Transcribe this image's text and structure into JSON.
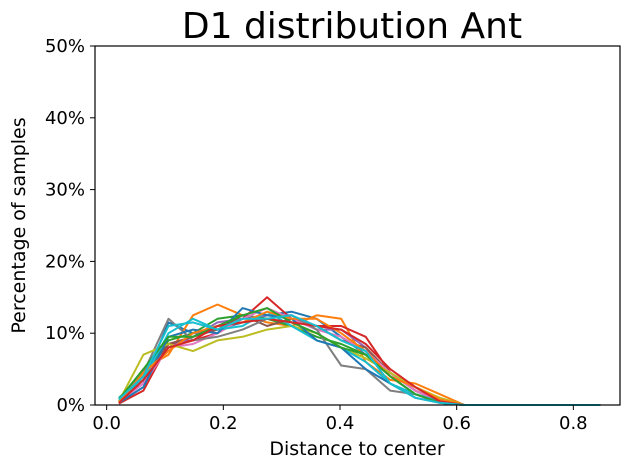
{
  "chart_data": {
    "type": "line",
    "title": "D1 distribution Ant",
    "xlabel": "Distance to center",
    "ylabel": "Percentage of samples",
    "xlim": [
      -0.02,
      0.88
    ],
    "ylim": [
      0,
      50
    ],
    "xticks": [
      0.0,
      0.2,
      0.4,
      0.6,
      0.8
    ],
    "xtick_labels": [
      "0.0",
      "0.2",
      "0.4",
      "0.6",
      "0.8"
    ],
    "yticks": [
      0,
      10,
      20,
      30,
      40,
      50
    ],
    "ytick_labels": [
      "0%",
      "10%",
      "20%",
      "30%",
      "40%",
      "50%"
    ],
    "grid": false,
    "legend": "none",
    "x": [
      0.021,
      0.063,
      0.106,
      0.148,
      0.19,
      0.233,
      0.275,
      0.317,
      0.36,
      0.402,
      0.444,
      0.486,
      0.529,
      0.571,
      0.613,
      0.656,
      0.698,
      0.74,
      0.783,
      0.825,
      0.846
    ],
    "series": [
      {
        "color": "#1f77b4",
        "values": [
          0.5,
          3.0,
          11.5,
          10.0,
          10.5,
          11.5,
          12.5,
          13.0,
          12.0,
          9.5,
          7.0,
          4.0,
          1.5,
          0.5,
          0,
          0,
          0,
          0,
          0,
          0,
          0
        ]
      },
      {
        "color": "#ff7f0e",
        "values": [
          0.3,
          5.0,
          7.0,
          12.5,
          14.0,
          12.5,
          11.5,
          11.0,
          12.5,
          12.0,
          6.0,
          3.5,
          3.0,
          1.5,
          0,
          0,
          0,
          0,
          0,
          0,
          0
        ]
      },
      {
        "color": "#2ca02c",
        "values": [
          1.0,
          4.0,
          9.0,
          10.0,
          12.0,
          12.5,
          12.0,
          11.0,
          9.5,
          8.5,
          7.0,
          4.5,
          2.0,
          0.5,
          0,
          0,
          0,
          0,
          0,
          0,
          0
        ]
      },
      {
        "color": "#d62728",
        "values": [
          0.2,
          2.0,
          8.5,
          9.0,
          10.0,
          12.0,
          15.0,
          12.0,
          11.0,
          11.0,
          9.5,
          4.5,
          2.0,
          0.5,
          0,
          0,
          0,
          0,
          0,
          0,
          0
        ]
      },
      {
        "color": "#9467bd",
        "values": [
          0.5,
          3.5,
          8.0,
          9.5,
          11.5,
          12.0,
          12.5,
          12.5,
          10.5,
          10.5,
          8.0,
          4.0,
          1.5,
          0.3,
          0,
          0,
          0,
          0,
          0,
          0,
          0
        ]
      },
      {
        "color": "#8c564b",
        "values": [
          0.5,
          4.0,
          8.5,
          9.5,
          10.5,
          12.5,
          11.0,
          12.0,
          11.0,
          9.0,
          8.0,
          4.5,
          2.0,
          0.5,
          0,
          0,
          0,
          0,
          0,
          0,
          0
        ]
      },
      {
        "color": "#e377c2",
        "values": [
          0.5,
          3.0,
          8.0,
          8.5,
          10.0,
          12.0,
          13.5,
          12.0,
          10.5,
          9.5,
          7.5,
          4.5,
          2.0,
          0.5,
          0,
          0,
          0,
          0,
          0,
          0,
          0
        ]
      },
      {
        "color": "#7f7f7f",
        "values": [
          0.5,
          4.5,
          12.0,
          9.0,
          9.5,
          10.5,
          12.0,
          12.5,
          10.5,
          5.5,
          5.0,
          2.0,
          1.5,
          0.5,
          0,
          0,
          0,
          0,
          0,
          0,
          0
        ]
      },
      {
        "color": "#bcbd22",
        "values": [
          0.5,
          7.0,
          8.5,
          7.5,
          9.0,
          9.5,
          10.5,
          11.0,
          10.0,
          8.0,
          6.5,
          4.5,
          2.5,
          1.0,
          0,
          0,
          0,
          0,
          0,
          0,
          0
        ]
      },
      {
        "color": "#17becf",
        "values": [
          1.0,
          3.5,
          10.0,
          12.0,
          10.5,
          11.0,
          13.0,
          11.0,
          9.0,
          8.0,
          6.0,
          3.0,
          1.5,
          0.5,
          0,
          0,
          0,
          0,
          0,
          0,
          0
        ]
      },
      {
        "color": "#1f77b4",
        "values": [
          0.3,
          2.5,
          9.5,
          10.5,
          10.0,
          13.5,
          12.5,
          12.0,
          9.0,
          8.0,
          5.0,
          3.0,
          1.0,
          0.3,
          0,
          0,
          0,
          0,
          0,
          0,
          0
        ]
      },
      {
        "color": "#ff7f0e",
        "values": [
          0.3,
          4.5,
          7.5,
          10.0,
          11.0,
          11.5,
          13.0,
          12.0,
          12.0,
          10.0,
          7.5,
          4.0,
          2.5,
          0.8,
          0,
          0,
          0,
          0,
          0,
          0,
          0
        ]
      },
      {
        "color": "#2ca02c",
        "values": [
          0.8,
          5.0,
          9.5,
          9.5,
          11.0,
          12.5,
          13.5,
          11.5,
          10.0,
          8.0,
          7.0,
          4.0,
          1.5,
          0.3,
          0,
          0,
          0,
          0,
          0,
          0,
          0
        ]
      },
      {
        "color": "#d62728",
        "values": [
          0.3,
          3.5,
          8.0,
          9.0,
          11.0,
          11.5,
          12.0,
          11.5,
          11.0,
          10.5,
          8.5,
          5.0,
          2.5,
          0.5,
          0,
          0,
          0,
          0,
          0,
          0,
          0
        ]
      },
      {
        "color": "#17becf",
        "values": [
          0.8,
          4.0,
          11.0,
          11.5,
          10.5,
          12.0,
          12.0,
          12.5,
          11.0,
          9.0,
          7.5,
          3.0,
          1.0,
          0.3,
          0,
          0,
          0,
          0,
          0,
          0,
          0
        ]
      }
    ]
  }
}
